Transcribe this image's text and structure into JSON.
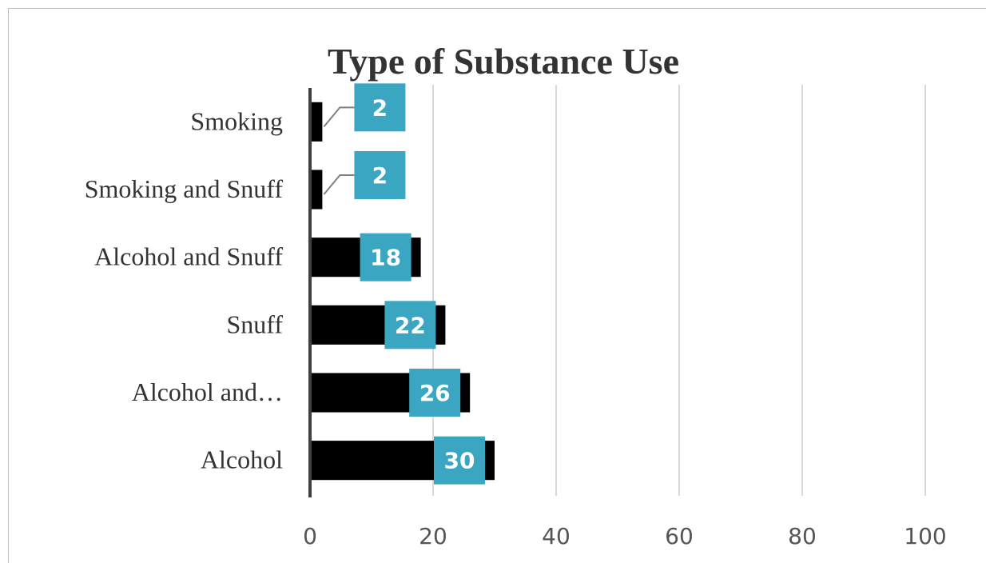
{
  "chart_data": {
    "type": "bar",
    "orientation": "horizontal",
    "title": "Type of Substance Use",
    "categories": [
      "Alcohol",
      "Alcohol and…",
      "Snuff",
      "Alcohol and Snuff",
      "Smoking and Snuff",
      "Smoking"
    ],
    "values": [
      30,
      26,
      22,
      18,
      2,
      2
    ],
    "data_labels": [
      "30",
      "26",
      "22",
      "18",
      "2",
      "2"
    ],
    "xlabel": "",
    "ylabel": "",
    "xlim": [
      0,
      100
    ],
    "xticks": [
      0,
      20,
      40,
      60,
      80,
      100
    ],
    "xtick_labels": [
      "0",
      "20",
      "40",
      "60",
      "80",
      "100"
    ],
    "grid": "vertical",
    "legend": "none",
    "colors": {
      "bar": "#000000",
      "data_label_box": "#3aa6c1",
      "data_label_text": "#ffffff",
      "grid": "#d9d9d9",
      "axis": "#404040",
      "text": "#333333"
    }
  }
}
